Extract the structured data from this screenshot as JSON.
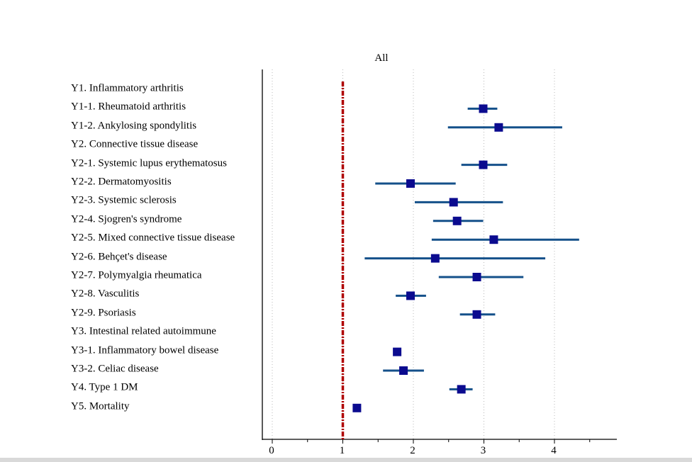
{
  "chart_data": {
    "type": "forest",
    "title": "All",
    "xlim": [
      -0.15,
      4.9
    ],
    "x_ticks": [
      "0",
      "1",
      "2",
      "3",
      "4"
    ],
    "reference_line": 1,
    "grid": "vertical dotted",
    "colors": {
      "marker": "#0b0b8f",
      "ci_line": "#14508a",
      "reference": "#b00000",
      "axis": "#000000"
    },
    "rows": [
      {
        "label": "Y1. Inflammatory arthritis",
        "est": null,
        "lo": null,
        "hi": null
      },
      {
        "label": "Y1-1. Rheumatoid arthritis",
        "est": 2.99,
        "lo": 2.77,
        "hi": 3.19
      },
      {
        "label": "Y1-2. Ankylosing spondylitis",
        "est": 3.21,
        "lo": 2.49,
        "hi": 4.11
      },
      {
        "label": "Y2. Connective tissue disease",
        "est": null,
        "lo": null,
        "hi": null
      },
      {
        "label": "Y2-1. Systemic lupus erythematosus",
        "est": 2.99,
        "lo": 2.68,
        "hi": 3.33
      },
      {
        "label": "Y2-2. Dermatomyositis",
        "est": 1.96,
        "lo": 1.46,
        "hi": 2.6
      },
      {
        "label": "Y2-3. Systemic sclerosis",
        "est": 2.57,
        "lo": 2.02,
        "hi": 3.27
      },
      {
        "label": "Y2-4. Sjogren's syndrome",
        "est": 2.62,
        "lo": 2.28,
        "hi": 2.99
      },
      {
        "label": "Y2-5. Mixed connective tissue disease",
        "est": 3.14,
        "lo": 2.26,
        "hi": 4.35
      },
      {
        "label": "Y2-6. Behçet's disease",
        "est": 2.31,
        "lo": 1.31,
        "hi": 3.87
      },
      {
        "label": "Y2-7. Polymyalgia rheumatica",
        "est": 2.9,
        "lo": 2.36,
        "hi": 3.56
      },
      {
        "label": "Y2-8. Vasculitis",
        "est": 1.96,
        "lo": 1.75,
        "hi": 2.18
      },
      {
        "label": "Y2-9. Psoriasis",
        "est": 2.9,
        "lo": 2.66,
        "hi": 3.16
      },
      {
        "label": "Y3. Intestinal related autoimmune",
        "est": null,
        "lo": null,
        "hi": null
      },
      {
        "label": "Y3-1. Inflammatory bowel disease",
        "est": 1.77,
        "lo": null,
        "hi": null
      },
      {
        "label": "Y3-2. Celiac disease",
        "est": 1.86,
        "lo": 1.57,
        "hi": 2.15
      },
      {
        "label": "Y4. Type 1 DM",
        "est": 2.68,
        "lo": 2.51,
        "hi": 2.84
      },
      {
        "label": "Y5. Mortality",
        "est": 1.2,
        "lo": null,
        "hi": null
      }
    ]
  }
}
